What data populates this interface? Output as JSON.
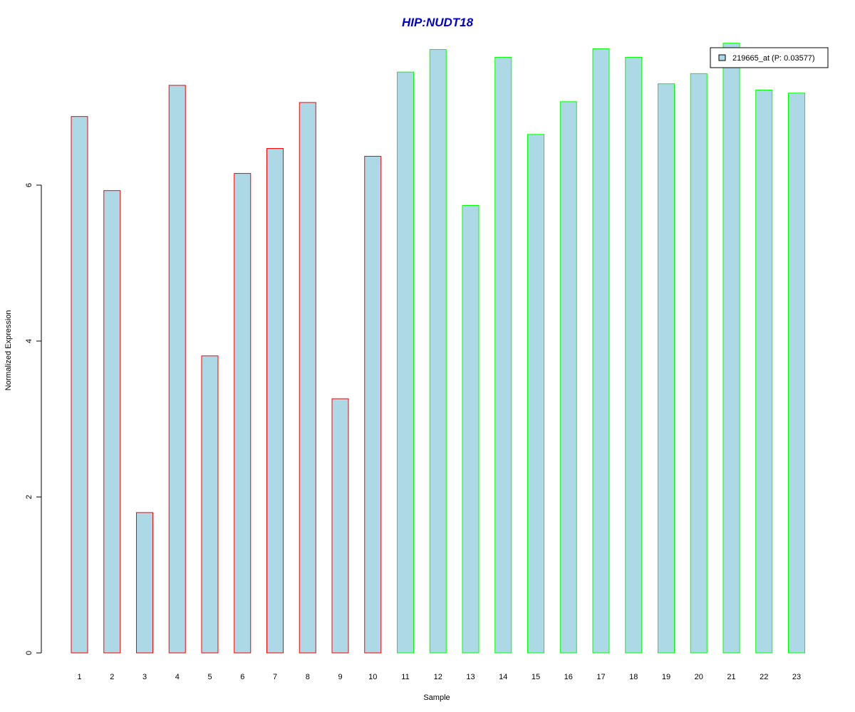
{
  "chart_data": {
    "type": "bar",
    "title": "HIP:NUDT18",
    "xlabel": "Sample",
    "ylabel": "Normalized Expression",
    "categories": [
      "1",
      "2",
      "3",
      "4",
      "5",
      "6",
      "7",
      "8",
      "9",
      "10",
      "11",
      "12",
      "13",
      "14",
      "15",
      "16",
      "17",
      "18",
      "19",
      "20",
      "21",
      "22",
      "23"
    ],
    "values": [
      6.88,
      5.93,
      1.8,
      7.28,
      3.81,
      6.15,
      6.47,
      7.06,
      3.26,
      6.37,
      7.45,
      7.74,
      5.74,
      7.64,
      6.65,
      7.07,
      7.75,
      7.64,
      7.3,
      7.43,
      7.82,
      7.22,
      7.18
    ],
    "groups": [
      "red",
      "red",
      "red",
      "red",
      "red",
      "red",
      "red",
      "red",
      "red",
      "red",
      "green",
      "green",
      "green",
      "green",
      "green",
      "green",
      "green",
      "green",
      "green",
      "green",
      "green",
      "green",
      "green"
    ],
    "yticks": [
      0,
      2,
      4,
      6
    ],
    "ylim": [
      0,
      7.82
    ],
    "grid": false,
    "legend": {
      "label": "219665_at (P: 0.03577)",
      "placement": "top-right"
    },
    "colors": {
      "bar_fill": "#add8e6",
      "border_red": "#ff0000",
      "border_green": "#00ff00",
      "title": "#0000cd"
    }
  }
}
